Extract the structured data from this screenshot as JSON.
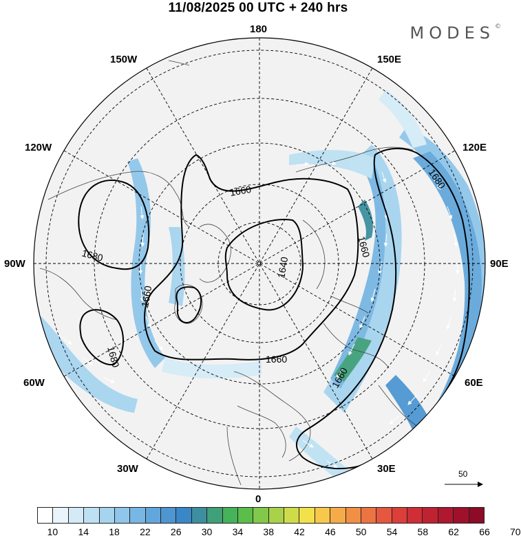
{
  "header": {
    "title": "11/08/2025  00 UTC  + 240 hrs",
    "brand": "MODES",
    "brand_mark": "©"
  },
  "map": {
    "projection": "north-polar-stereographic",
    "longitude_labels": {
      "top": "180",
      "bottom": "0",
      "left": "90W",
      "right": "90E",
      "upper_left_outer": "150W",
      "upper_left": "120W",
      "lower_left": "60W",
      "lower_left_inner": "30W",
      "upper_right_outer": "150E",
      "upper_right": "120E",
      "lower_right": "60E",
      "lower_right_inner": "30E"
    },
    "contour_labels": {
      "c1": "1680",
      "c2": "1660",
      "c3": "1640",
      "c4": "1660",
      "c5": "1680",
      "c6": "1660",
      "c7": "1680",
      "c8": "1660",
      "c9": "1660"
    },
    "vector_scale_label": "50"
  },
  "colorbar": {
    "ticks": [
      "10",
      "14",
      "18",
      "22",
      "26",
      "30",
      "34",
      "38",
      "42",
      "46",
      "50",
      "54",
      "58",
      "62",
      "66",
      "70"
    ],
    "colors": [
      "#ffffff",
      "#eaf4fb",
      "#d4ebf7",
      "#bde1f3",
      "#a6d4ef",
      "#8fc6ea",
      "#78b7e3",
      "#62a7db",
      "#4d96d1",
      "#3a87c8",
      "#3d8fa0",
      "#3fa07a",
      "#46b25a",
      "#5bbd4a",
      "#82c84a",
      "#a9d24a",
      "#cfdc4a",
      "#f2e14a",
      "#f7c84a",
      "#f5ab4a",
      "#f18f45",
      "#ec7342",
      "#e5573e",
      "#dc3e3a",
      "#cf2e36",
      "#c02232",
      "#b0182f",
      "#9f112b",
      "#8c0b27"
    ]
  }
}
